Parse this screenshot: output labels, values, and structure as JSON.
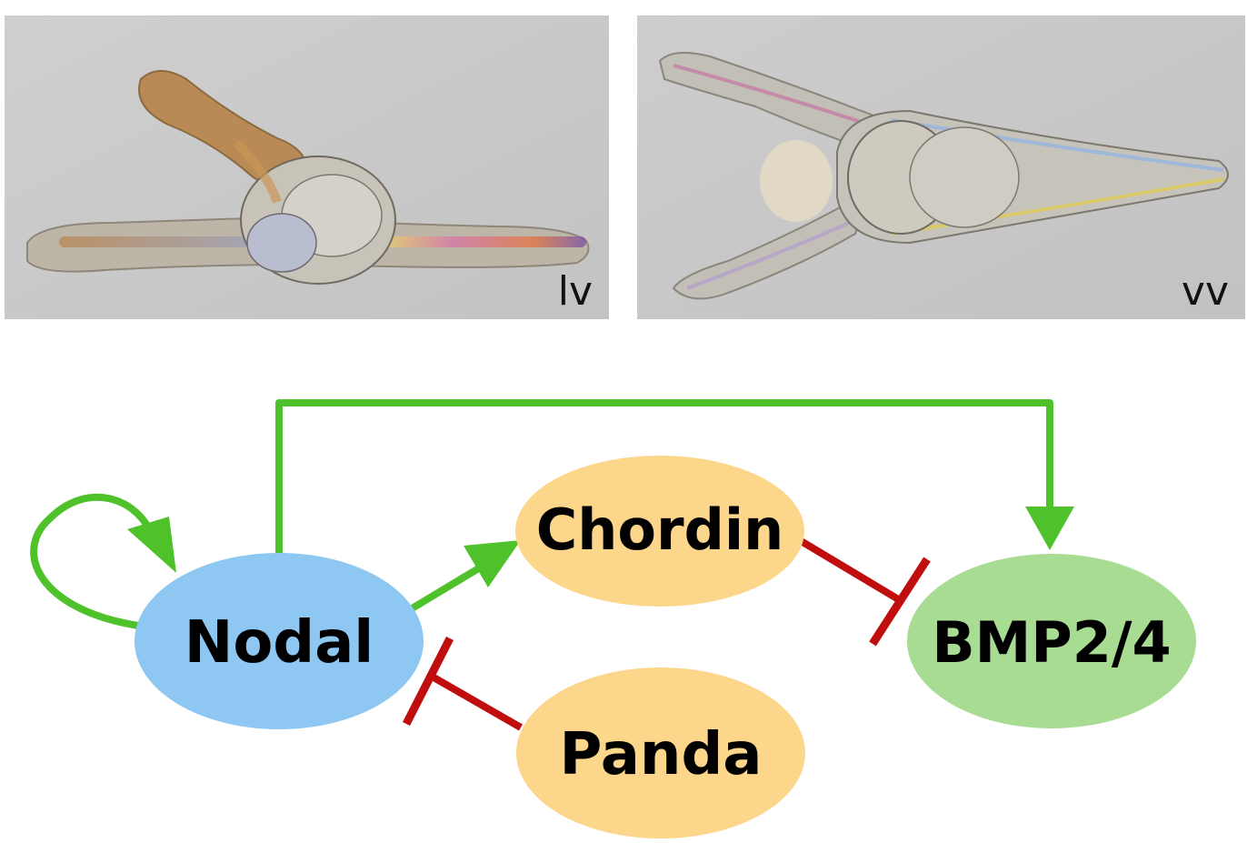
{
  "panels": {
    "left_label": "lv",
    "right_label": "vv"
  },
  "nodes": {
    "nodal": "Nodal",
    "chordin": "Chordin",
    "bmp": "BMP2/4",
    "panda": "Panda"
  },
  "colors": {
    "activation": "#4fc22b",
    "inhibition": "#c00d0d",
    "nodal_fill": "#8ec7f1",
    "chordin_fill": "#fcd68a",
    "panda_fill": "#fcd68a",
    "bmp_fill": "#a8dc93"
  }
}
